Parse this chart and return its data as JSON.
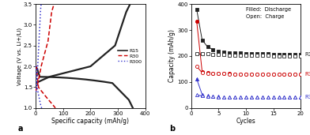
{
  "panel_a": {
    "ylabel": "Voltage (V vs. Li+/Li)",
    "xlabel": "Specific capacity (mAh/g)",
    "xlim": [
      0,
      400
    ],
    "ylim": [
      1.0,
      3.5
    ],
    "yticks": [
      1.0,
      1.5,
      2.0,
      2.5,
      3.0,
      3.5
    ],
    "xticks": [
      0,
      100,
      200,
      300,
      400
    ],
    "label": "a"
  },
  "panel_b": {
    "ylabel": "Capacity (mAh/g)",
    "xlabel": "Cycles",
    "xlim": [
      0,
      20
    ],
    "ylim": [
      0,
      400
    ],
    "yticks": [
      0,
      100,
      200,
      300,
      400
    ],
    "xticks": [
      0,
      5,
      10,
      15,
      20
    ],
    "label": "b",
    "annotation": "Filled:  Discharge\nOpen:  Charge"
  },
  "colors": {
    "R15": "#222222",
    "R30": "#cc0000",
    "R300": "#3333cc"
  },
  "cycle_data": {
    "cycles": [
      1,
      2,
      3,
      4,
      5,
      6,
      7,
      8,
      9,
      10,
      11,
      12,
      13,
      14,
      15,
      16,
      17,
      18,
      19,
      20
    ],
    "R15_discharge": [
      380,
      262,
      235,
      225,
      218,
      215,
      213,
      212,
      211,
      210,
      210,
      209,
      208,
      208,
      207,
      207,
      207,
      206,
      206,
      205
    ],
    "R15_charge": [
      210,
      210,
      208,
      207,
      206,
      205,
      204,
      204,
      203,
      203,
      203,
      202,
      202,
      202,
      201,
      201,
      201,
      201,
      200,
      200
    ],
    "R30_discharge": [
      335,
      140,
      136,
      134,
      133,
      132,
      132,
      131,
      131,
      131,
      131,
      131,
      130,
      130,
      130,
      130,
      130,
      130,
      130,
      130
    ],
    "R30_charge": [
      160,
      136,
      134,
      133,
      132,
      132,
      131,
      131,
      131,
      131,
      131,
      130,
      130,
      130,
      130,
      130,
      130,
      130,
      130,
      130
    ],
    "R300_discharge": [
      112,
      52,
      47,
      45,
      44,
      43,
      43,
      43,
      43,
      43,
      43,
      43,
      43,
      43,
      43,
      43,
      43,
      43,
      43,
      43
    ],
    "R300_charge": [
      50,
      47,
      45,
      44,
      43,
      43,
      43,
      43,
      43,
      43,
      43,
      43,
      43,
      43,
      43,
      43,
      43,
      43,
      43,
      43
    ]
  }
}
